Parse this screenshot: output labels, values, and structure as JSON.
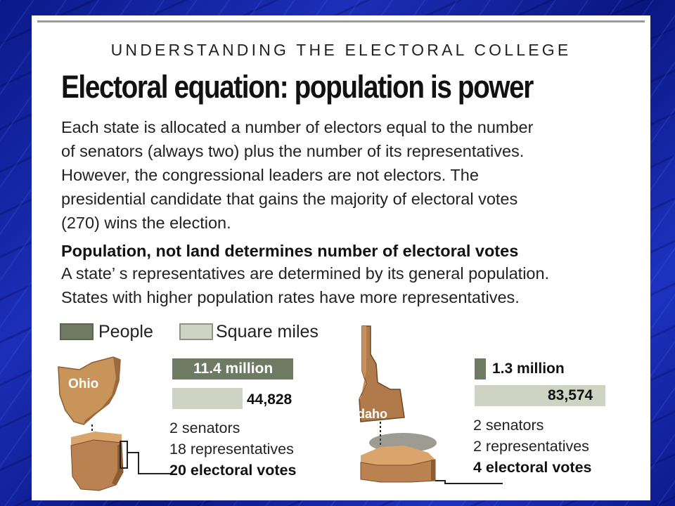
{
  "slide": {
    "kicker": "UNDERSTANDING THE ELECTORAL COLLEGE",
    "headline": "Electoral equation: population is power",
    "intro_lines": [
      "Each state is allocated a number of electors equal to the number",
      "of senators (always two) plus the number of its representatives.",
      "However, the congressional leaders are not electors. The",
      "presidential candidate that gains the majority of electoral votes",
      "(270) wins the election."
    ],
    "subhead": "Population, not land determines number of electoral votes",
    "detail_lines": [
      "A state’ s representatives are determined by its general population.",
      "States with higher population rates have more representatives."
    ]
  },
  "legend": {
    "people": "People",
    "square_miles": "Square miles",
    "people_color": "#6e7a62",
    "square_miles_color": "#cfd3c3"
  },
  "states": {
    "ohio": {
      "name": "Ohio",
      "population_label": "11.4 million",
      "population_millions": 11.4,
      "area_label": "44,828",
      "area_sq_miles": 44828,
      "senators": "2 senators",
      "representatives": "18 representatives",
      "electoral_votes": "20 electoral votes",
      "map_color": "#c8945a"
    },
    "idaho": {
      "name": "Idaho",
      "population_label": "1.3 million",
      "population_millions": 1.3,
      "area_label": "83,574",
      "area_sq_miles": 83574,
      "senators": "2 senators",
      "representatives": "2 representatives",
      "electoral_votes": "4 electoral votes",
      "map_color": "#b07a4a"
    }
  },
  "colors": {
    "background": "#1b2fb8",
    "panel": "#ffffff",
    "text": "#222222"
  }
}
